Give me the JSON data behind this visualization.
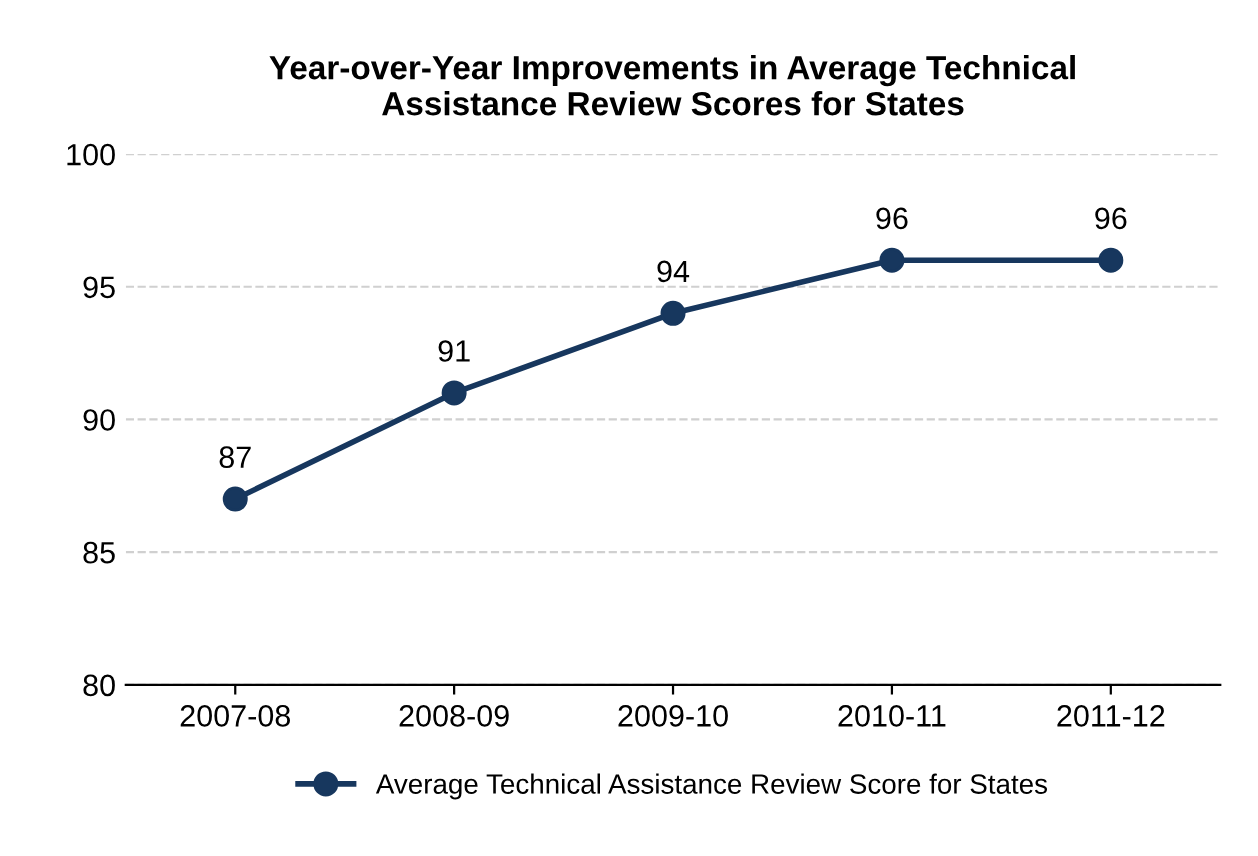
{
  "chart_data": {
    "type": "line",
    "title": "Year-over-Year Improvements in Average Technical\nAssistance Review Scores for States",
    "categories": [
      "2007-08",
      "2008-09",
      "2009-10",
      "2010-11",
      "2011-12"
    ],
    "series": [
      {
        "name": "Average Technical Assistance Review Score for States",
        "color": "#17375e",
        "values": [
          87,
          91,
          94,
          96,
          96
        ]
      }
    ],
    "ylim": [
      80,
      100
    ],
    "yticks": [
      80,
      85,
      90,
      95,
      100
    ],
    "grid": "y",
    "legend": "bottom",
    "marker": "circle",
    "line_style": "solid",
    "data_labels": true
  }
}
